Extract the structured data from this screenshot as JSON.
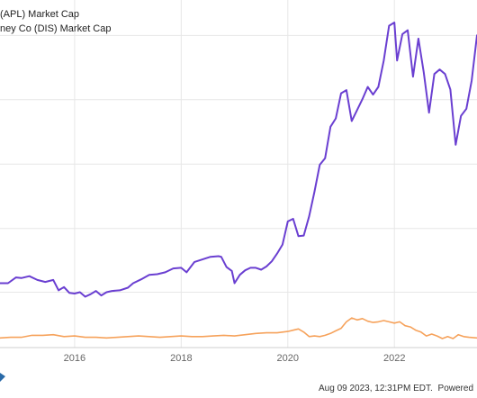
{
  "legend": {
    "series_1": "(APL) Market Cap",
    "series_2": "ney Co (DIS) Market Cap"
  },
  "footer": {
    "timestamp": "Aug 09 2023, 12:31PM EDT.",
    "powered": "Powered"
  },
  "colors": {
    "apple": "#6a3fd1",
    "disney": "#f6a25b",
    "grid": "#e7e7e7",
    "background": "#ffffff"
  },
  "chart_data": {
    "type": "line",
    "title": "",
    "xlabel": "",
    "ylabel": "",
    "x_tick_labels": [
      "2016",
      "2018",
      "2020",
      "2022"
    ],
    "grid": true,
    "legend_position": "top-left",
    "y_axis_labels_visible": false,
    "series": [
      {
        "name": "(APL) Market Cap",
        "color": "#6a3fd1",
        "x": [
          2014.6,
          2014.75,
          2014.9,
          2015.0,
          2015.15,
          2015.3,
          2015.45,
          2015.6,
          2015.7,
          2015.8,
          2015.9,
          2016.0,
          2016.1,
          2016.2,
          2016.3,
          2016.4,
          2016.5,
          2016.6,
          2016.7,
          2016.85,
          2017.0,
          2017.1,
          2017.25,
          2017.4,
          2017.55,
          2017.7,
          2017.85,
          2018.0,
          2018.1,
          2018.25,
          2018.4,
          2018.55,
          2018.7,
          2018.75,
          2018.85,
          2018.95,
          2019.0,
          2019.1,
          2019.2,
          2019.3,
          2019.4,
          2019.5,
          2019.6,
          2019.7,
          2019.8,
          2019.9,
          2020.0,
          2020.1,
          2020.2,
          2020.3,
          2020.4,
          2020.5,
          2020.6,
          2020.7,
          2020.8,
          2020.9,
          2021.0,
          2021.1,
          2021.2,
          2021.3,
          2021.4,
          2021.5,
          2021.6,
          2021.7,
          2021.8,
          2021.9,
          2022.0,
          2022.05,
          2022.15,
          2022.25,
          2022.35,
          2022.45,
          2022.55,
          2022.65,
          2022.75,
          2022.85,
          2022.95,
          2023.05,
          2023.15,
          2023.25,
          2023.35,
          2023.45,
          2023.55
        ],
        "y": [
          1.0,
          1.0,
          1.09,
          1.08,
          1.11,
          1.05,
          1.02,
          1.05,
          0.89,
          0.94,
          0.85,
          0.84,
          0.86,
          0.79,
          0.83,
          0.88,
          0.81,
          0.86,
          0.88,
          0.89,
          0.93,
          1.0,
          1.06,
          1.13,
          1.14,
          1.17,
          1.23,
          1.24,
          1.17,
          1.33,
          1.37,
          1.41,
          1.42,
          1.41,
          1.25,
          1.19,
          1.0,
          1.13,
          1.2,
          1.24,
          1.24,
          1.21,
          1.26,
          1.34,
          1.46,
          1.6,
          1.96,
          2.0,
          1.73,
          1.74,
          2.04,
          2.42,
          2.84,
          2.94,
          3.43,
          3.56,
          3.95,
          4.0,
          3.52,
          3.69,
          3.86,
          4.05,
          3.93,
          4.05,
          4.46,
          5.0,
          5.05,
          4.46,
          4.87,
          4.93,
          4.21,
          4.8,
          4.28,
          3.65,
          4.25,
          4.32,
          4.25,
          4.01,
          3.15,
          3.6,
          3.71,
          4.15,
          4.85
        ]
      },
      {
        "name": "ney Co (DIS) Market Cap",
        "color": "#f6a25b",
        "x": [
          2014.6,
          2014.8,
          2015.0,
          2015.2,
          2015.4,
          2015.6,
          2015.8,
          2016.0,
          2016.2,
          2016.4,
          2016.6,
          2016.8,
          2017.0,
          2017.2,
          2017.4,
          2017.6,
          2017.8,
          2018.0,
          2018.2,
          2018.4,
          2018.6,
          2018.8,
          2019.0,
          2019.2,
          2019.4,
          2019.6,
          2019.8,
          2020.0,
          2020.1,
          2020.2,
          2020.3,
          2020.4,
          2020.5,
          2020.6,
          2020.7,
          2020.8,
          2020.9,
          2021.0,
          2021.1,
          2021.2,
          2021.3,
          2021.4,
          2021.5,
          2021.6,
          2021.7,
          2021.8,
          2021.9,
          2022.0,
          2022.1,
          2022.2,
          2022.3,
          2022.4,
          2022.5,
          2022.6,
          2022.7,
          2022.8,
          2022.9,
          2023.0,
          2023.1,
          2023.2,
          2023.3,
          2023.4,
          2023.55
        ],
        "y": [
          0.15,
          0.16,
          0.16,
          0.19,
          0.19,
          0.2,
          0.17,
          0.18,
          0.16,
          0.16,
          0.15,
          0.16,
          0.17,
          0.18,
          0.17,
          0.16,
          0.17,
          0.18,
          0.17,
          0.17,
          0.18,
          0.19,
          0.18,
          0.2,
          0.22,
          0.23,
          0.23,
          0.25,
          0.27,
          0.29,
          0.24,
          0.17,
          0.18,
          0.17,
          0.19,
          0.22,
          0.26,
          0.3,
          0.4,
          0.46,
          0.43,
          0.45,
          0.41,
          0.39,
          0.4,
          0.42,
          0.4,
          0.38,
          0.4,
          0.34,
          0.32,
          0.27,
          0.24,
          0.18,
          0.21,
          0.18,
          0.14,
          0.17,
          0.14,
          0.2,
          0.17,
          0.16,
          0.15
        ]
      }
    ]
  }
}
